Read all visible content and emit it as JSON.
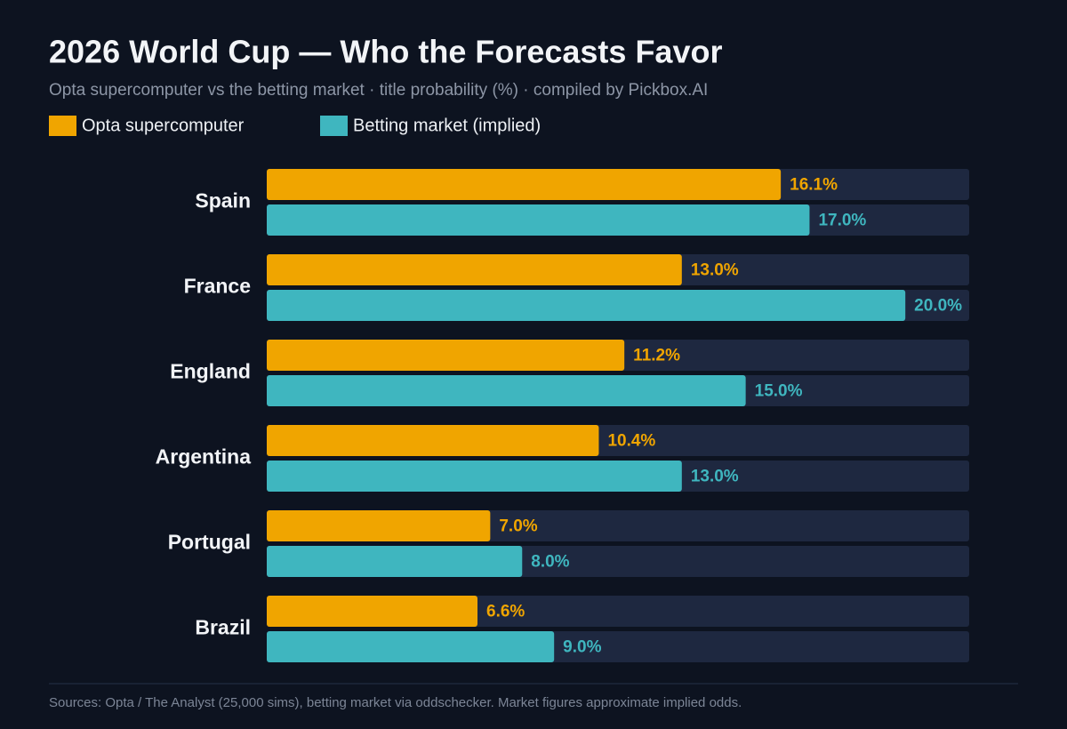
{
  "chart_data": {
    "type": "bar",
    "orientation": "horizontal",
    "title": "2026 World Cup — Who the Forecasts Favor",
    "subtitle": "Opta supercomputer vs the betting market · title probability (%) · compiled by Pickbox.AI",
    "source": "Sources: Opta / The Analyst (25,000 sims), betting market via oddschecker. Market figures approximate implied odds.",
    "categories": [
      "Spain",
      "France",
      "England",
      "Argentina",
      "Portugal",
      "Brazil"
    ],
    "xlim": [
      0,
      22
    ],
    "series": [
      {
        "name": "Opta supercomputer",
        "color": "#f0a500",
        "values": [
          16.1,
          13.0,
          11.2,
          10.4,
          7.0,
          6.6
        ],
        "value_labels": [
          "16.1%",
          "13.0%",
          "11.2%",
          "10.4%",
          "7.0%",
          "6.6%"
        ]
      },
      {
        "name": "Betting market (implied)",
        "color": "#3fb6bf",
        "values": [
          17.0,
          20.0,
          15.0,
          13.0,
          8.0,
          9.0
        ],
        "value_labels": [
          "17.0%",
          "20.0%",
          "15.0%",
          "13.0%",
          "8.0%",
          "9.0%"
        ]
      }
    ],
    "track_color": "#1e2840"
  }
}
